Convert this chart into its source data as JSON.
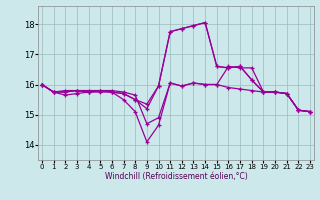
{
  "xlabel": "Windchill (Refroidissement éolien,°C)",
  "background_color": "#cce8ea",
  "grid_color": "#99bbbb",
  "line_color": "#990099",
  "x_ticks": [
    0,
    1,
    2,
    3,
    4,
    5,
    6,
    7,
    8,
    9,
    10,
    11,
    12,
    13,
    14,
    15,
    16,
    17,
    18,
    19,
    20,
    21,
    22,
    23
  ],
  "y_ticks": [
    14,
    15,
    16,
    17,
    18
  ],
  "ylim": [
    13.5,
    18.6
  ],
  "xlim": [
    -0.3,
    23.3
  ],
  "curves": [
    [
      16.0,
      15.75,
      15.8,
      15.8,
      15.8,
      15.8,
      15.8,
      15.75,
      15.65,
      14.7,
      14.9,
      16.05,
      15.95,
      16.05,
      16.0,
      16.0,
      15.9,
      15.85,
      15.8,
      15.75,
      15.75,
      15.7,
      15.15,
      15.1
    ],
    [
      16.0,
      15.75,
      15.75,
      15.8,
      15.75,
      15.8,
      15.75,
      15.7,
      15.5,
      15.2,
      15.95,
      17.75,
      17.85,
      17.95,
      18.05,
      16.6,
      16.55,
      16.6,
      16.15,
      15.75,
      15.75,
      15.7,
      15.15,
      15.1
    ],
    [
      16.0,
      15.75,
      15.65,
      15.7,
      15.75,
      15.75,
      15.75,
      15.5,
      15.1,
      14.1,
      14.65,
      16.05,
      15.95,
      16.05,
      16.0,
      16.0,
      16.6,
      16.55,
      16.55,
      15.75,
      15.75,
      15.7,
      15.15,
      15.1
    ],
    [
      16.0,
      15.75,
      15.75,
      15.8,
      15.75,
      15.8,
      15.75,
      15.7,
      15.5,
      15.35,
      15.95,
      17.75,
      17.85,
      17.95,
      18.05,
      16.6,
      16.55,
      16.6,
      16.15,
      15.75,
      15.75,
      15.7,
      15.15,
      15.1
    ]
  ]
}
